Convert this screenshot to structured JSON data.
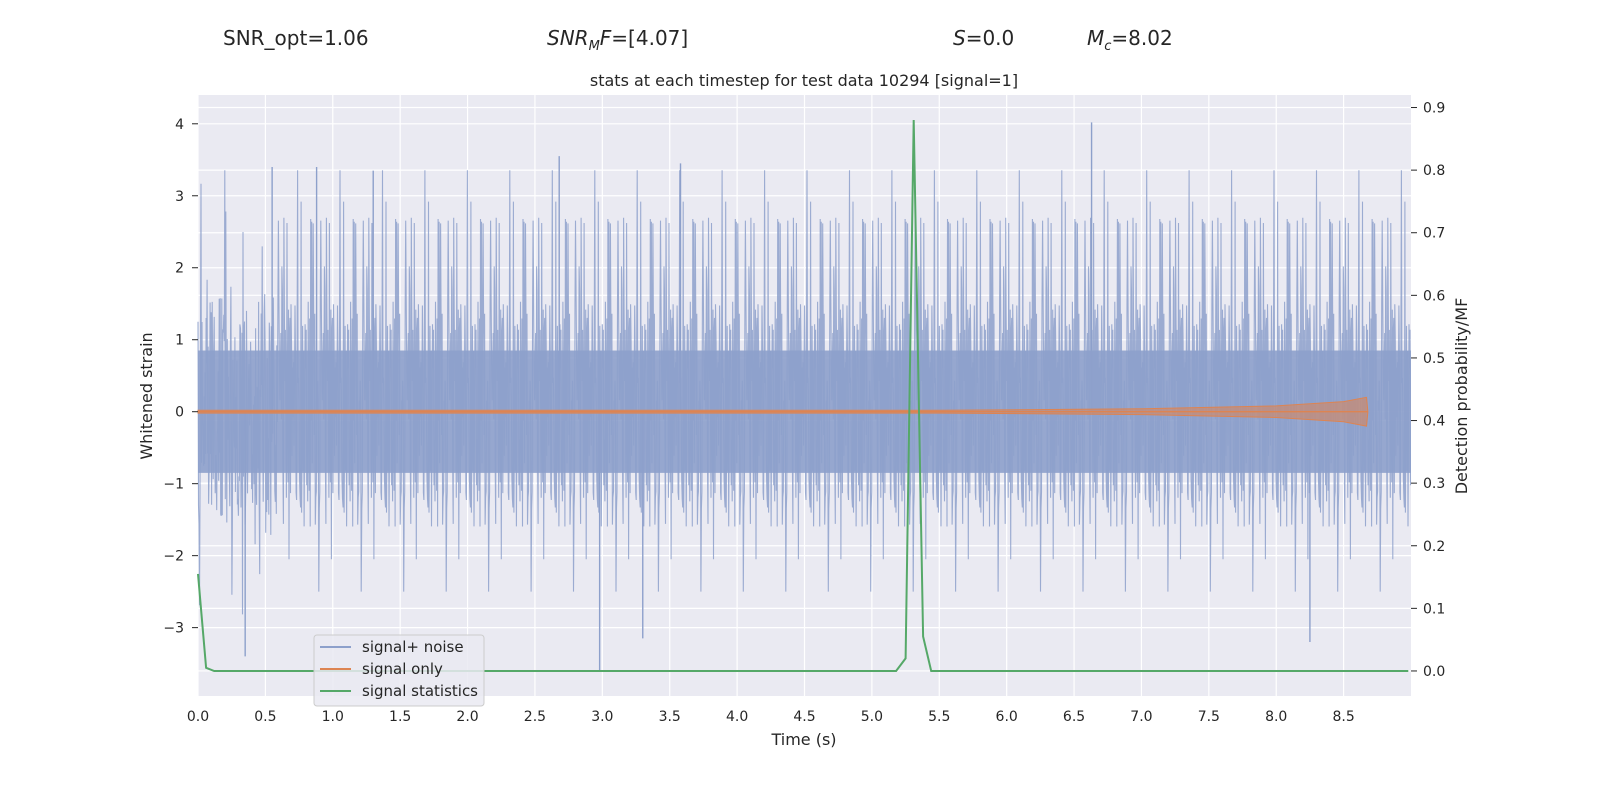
{
  "header": {
    "snr_opt": "SNR_opt=1.06",
    "snr_mf_symbol": "SNR",
    "snr_mf_subscript": "M",
    "snr_mf_symbol2": "F",
    "snr_mf_value": "=[4.07]",
    "s_symbol": "S",
    "s_value": "=0.0",
    "mc_symbol": "M",
    "mc_subscript": "c",
    "mc_value": "=8.02"
  },
  "chart_data": {
    "type": "line",
    "title": "stats at each timestep for test data 10294 [signal=1]",
    "xlabel": "Time (s)",
    "ylabel": "Whitened strain",
    "y2label": "Detection probability/MF",
    "xlim": [
      0,
      9
    ],
    "ylim": [
      -3.95,
      4.4
    ],
    "y2lim": [
      -0.04,
      0.92
    ],
    "xticks": [
      0,
      0.5,
      1.0,
      1.5,
      2.0,
      2.5,
      3.0,
      3.5,
      4.0,
      4.5,
      5.0,
      5.5,
      6.0,
      6.5,
      7.0,
      7.5,
      8.0,
      8.5
    ],
    "xtick_labels": [
      "0.0",
      "0.5",
      "1.0",
      "1.5",
      "2.0",
      "2.5",
      "3.0",
      "3.5",
      "4.0",
      "4.5",
      "5.0",
      "5.5",
      "6.0",
      "6.5",
      "7.0",
      "7.5",
      "8.0",
      "8.5"
    ],
    "yticks": [
      -3,
      -2,
      -1,
      0,
      1,
      2,
      3,
      4
    ],
    "ytick_labels": [
      "−3",
      "−2",
      "−1",
      "0",
      "1",
      "2",
      "3",
      "4"
    ],
    "y2ticks": [
      0.0,
      0.1,
      0.2,
      0.3,
      0.4,
      0.5,
      0.6,
      0.7,
      0.8,
      0.9
    ],
    "y2tick_labels": [
      "0.0",
      "0.1",
      "0.2",
      "0.3",
      "0.4",
      "0.5",
      "0.6",
      "0.7",
      "0.8",
      "0.9"
    ],
    "grid": true,
    "legend_position": "lower-left",
    "series": [
      {
        "name": "signal+ noise",
        "axis": "left",
        "color": "#8da0cb",
        "kind": "noise",
        "envelope": {
          "core": 0.85,
          "band": 1.6,
          "peak_max": 4.0,
          "peak_min": -3.6
        },
        "notable_points": [
          {
            "x": 0.55,
            "y": 3.4
          },
          {
            "x": 0.88,
            "y": 3.4
          },
          {
            "x": 1.3,
            "y": 3.35
          },
          {
            "x": 2.68,
            "y": 3.55
          },
          {
            "x": 3.58,
            "y": 3.45
          },
          {
            "x": 6.63,
            "y": 4.02
          },
          {
            "x": 0.35,
            "y": -3.4
          },
          {
            "x": 2.98,
            "y": -3.6
          },
          {
            "x": 3.3,
            "y": -3.15
          },
          {
            "x": 8.25,
            "y": -3.2
          }
        ]
      },
      {
        "name": "signal only",
        "axis": "left",
        "color": "#dd8452",
        "kind": "chirp",
        "amplitude_points": [
          {
            "x": 0.0,
            "y": 0.02
          },
          {
            "x": 5.5,
            "y": 0.02
          },
          {
            "x": 7.0,
            "y": 0.04
          },
          {
            "x": 8.0,
            "y": 0.08
          },
          {
            "x": 8.5,
            "y": 0.14
          },
          {
            "x": 8.67,
            "y": 0.2
          },
          {
            "x": 8.68,
            "y": 0.0
          }
        ]
      },
      {
        "name": "signal statistics",
        "axis": "right",
        "color": "#55a868",
        "x": [
          0.0,
          0.06,
          0.12,
          5.18,
          5.25,
          5.31,
          5.38,
          5.44,
          8.98
        ],
        "y": [
          0.155,
          0.005,
          0.0,
          0.0,
          0.02,
          0.88,
          0.055,
          0.0,
          0.0
        ]
      }
    ]
  }
}
